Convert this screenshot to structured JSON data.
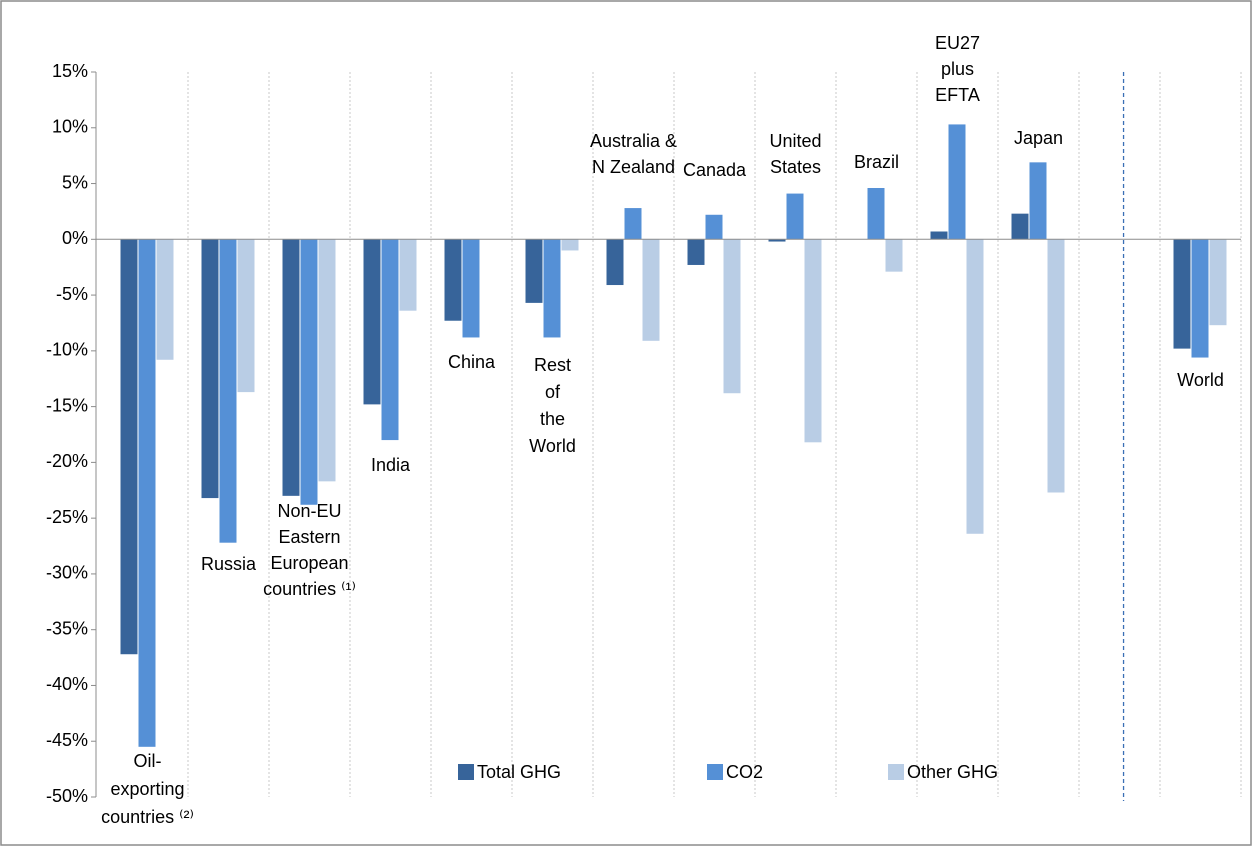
{
  "chart_data": {
    "type": "bar",
    "categories": [
      "Oil-\nexporting\ncountries ⁽²⁾",
      "Russia",
      "Non-EU\nEastern\nEuropean\ncountries ⁽¹⁾",
      "India",
      "China",
      "Rest\nof\nthe\nWorld",
      "Australia &\nN Zealand",
      "Canada",
      "United\nStates",
      "Brazil",
      "EU27\nplus\nEFTA",
      "Japan",
      null,
      "World"
    ],
    "series": [
      {
        "name": "Total GHG",
        "color": "#37649a",
        "values": [
          -37.2,
          -23.2,
          -23.0,
          -14.8,
          -7.3,
          -5.7,
          -4.1,
          -2.3,
          -0.2,
          0,
          0.7,
          2.3,
          null,
          -9.8
        ]
      },
      {
        "name": "CO2",
        "color": "#5590d6",
        "values": [
          -45.5,
          -27.2,
          -23.8,
          -18.0,
          -8.8,
          -8.8,
          2.8,
          2.2,
          4.1,
          4.6,
          10.3,
          6.9,
          null,
          -10.6
        ]
      },
      {
        "name": "Other GHG",
        "color": "#b9cde5",
        "values": [
          -10.8,
          -13.7,
          -21.7,
          -6.4,
          0,
          -1.0,
          -9.1,
          -13.8,
          -18.2,
          -2.9,
          -26.4,
          -22.7,
          null,
          -7.7
        ]
      }
    ],
    "ylim": [
      -50,
      15
    ],
    "yticks": [
      {
        "value": -50,
        "label": "-50%"
      },
      {
        "value": -45,
        "label": "-45%"
      },
      {
        "value": -40,
        "label": "-40%"
      },
      {
        "value": -35,
        "label": "-35%"
      },
      {
        "value": -30,
        "label": "-30%"
      },
      {
        "value": -25,
        "label": "-25%"
      },
      {
        "value": -20,
        "label": "-20%"
      },
      {
        "value": -15,
        "label": "-15%"
      },
      {
        "value": -10,
        "label": "-10%"
      },
      {
        "value": -5,
        "label": "-5%"
      },
      {
        "value": 0,
        "label": "0%"
      },
      {
        "value": 5,
        "label": "5%"
      },
      {
        "value": 10,
        "label": "10%"
      },
      {
        "value": 15,
        "label": "15%"
      }
    ],
    "legend": "bottom"
  }
}
